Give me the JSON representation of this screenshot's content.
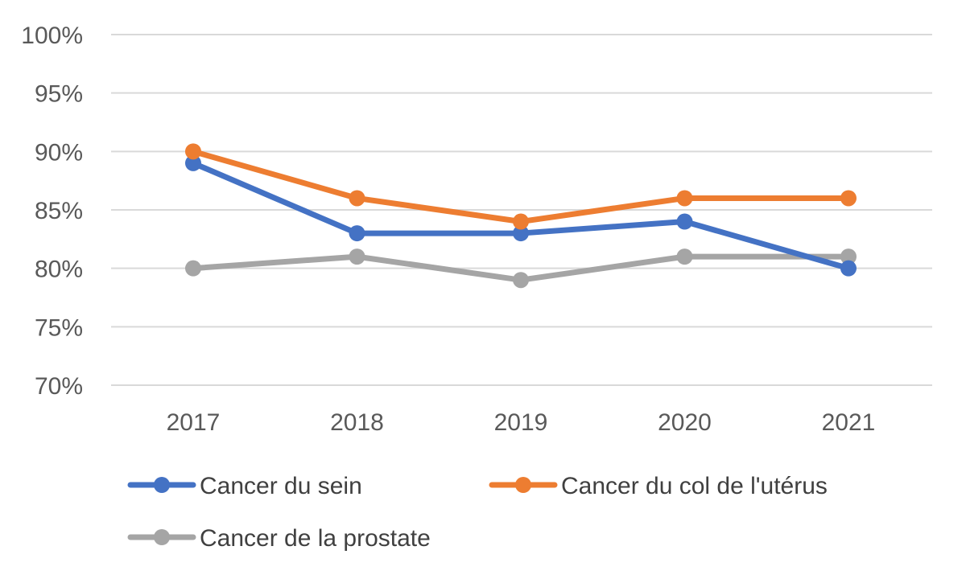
{
  "chart_data": {
    "type": "line",
    "title": "",
    "xlabel": "",
    "ylabel": "",
    "categories": [
      "2017",
      "2018",
      "2019",
      "2020",
      "2021"
    ],
    "ylim": [
      70,
      100
    ],
    "yticks": [
      70,
      75,
      80,
      85,
      90,
      95,
      100
    ],
    "ytick_labels": [
      "70%",
      "75%",
      "80%",
      "85%",
      "90%",
      "95%",
      "100%"
    ],
    "grid": true,
    "legend_position": "bottom",
    "series": [
      {
        "name": "Cancer du sein",
        "color": "#4472c4",
        "values": [
          89,
          83,
          83,
          84,
          80
        ]
      },
      {
        "name": "Cancer du col de l'utérus",
        "color": "#ed7d31",
        "values": [
          90,
          86,
          84,
          86,
          86
        ]
      },
      {
        "name": "Cancer de la prostate",
        "color": "#a5a5a5",
        "values": [
          80,
          81,
          79,
          81,
          81
        ]
      }
    ]
  }
}
